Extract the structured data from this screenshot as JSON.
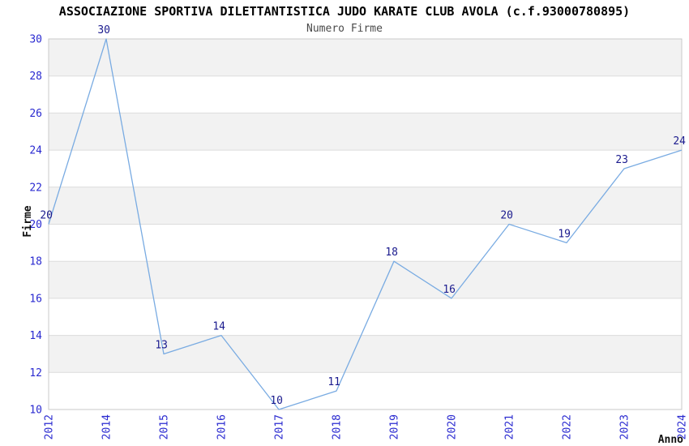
{
  "chart_data": {
    "type": "line",
    "title": "ASSOCIAZIONE SPORTIVA DILETTANTISTICA JUDO KARATE CLUB AVOLA (c.f.93000780895)",
    "subtitle": "Numero Firme",
    "xlabel": "Anno",
    "ylabel": "Firme",
    "categories": [
      "2012",
      "2014",
      "2015",
      "2016",
      "2017",
      "2018",
      "2019",
      "2020",
      "2021",
      "2022",
      "2023",
      "2024"
    ],
    "values": [
      20,
      30,
      13,
      14,
      10,
      11,
      18,
      16,
      20,
      19,
      23,
      24
    ],
    "ylim": [
      10,
      30
    ],
    "ytick_step": 2,
    "yticks": [
      10,
      12,
      14,
      16,
      18,
      20,
      22,
      24,
      26,
      28,
      30
    ],
    "grid": "horizontal alternating gray bands, top band gray",
    "legend": "none",
    "x_tick_rotation": -90,
    "point_labels_shown": true,
    "colors": {
      "line": "#79abe2",
      "tick_label": "#2a2ad0",
      "point_label": "#1b1b8e",
      "title": "#000000",
      "subtitle": "#4a4a4a",
      "band": "#f2f2f2",
      "band_alt": "#ffffff",
      "gridline": "#dcdcdc",
      "plot_border": "#c9c9c9",
      "axis_label": "#111111",
      "background": "#ffffff"
    }
  }
}
